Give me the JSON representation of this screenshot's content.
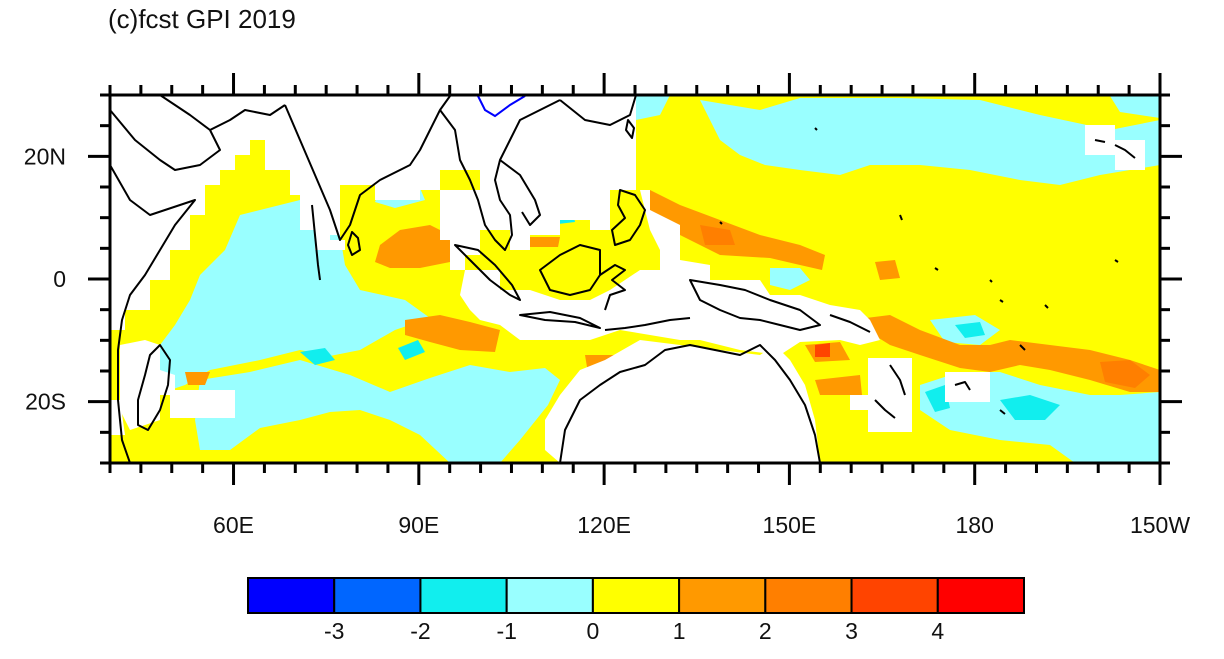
{
  "title": "(c)fcst GPI 2019",
  "map": {
    "lon_range": [
      40,
      210
    ],
    "lat_range": [
      -30,
      30
    ],
    "lat_ticks": [
      {
        "lat": 20,
        "label": "20N"
      },
      {
        "lat": 0,
        "label": "0"
      },
      {
        "lat": -20,
        "label": "20S"
      }
    ],
    "lon_ticks": [
      {
        "lon": 60,
        "label": "60E"
      },
      {
        "lon": 90,
        "label": "90E"
      },
      {
        "lon": 120,
        "label": "120E"
      },
      {
        "lon": 150,
        "label": "150E"
      },
      {
        "lon": 180,
        "label": "180"
      },
      {
        "lon": 210,
        "label": "150W"
      }
    ],
    "background_level": "0 to 1 (yellow)",
    "colors": {
      "frame": "#000000",
      "coastline": "#000000",
      "lake": "#0000ff",
      "missing": "#ffffff"
    }
  },
  "colorbar": {
    "bins": [
      {
        "color": "#0000ff"
      },
      {
        "color": "#0066ff"
      },
      {
        "color": "#11eeee"
      },
      {
        "color": "#99ffff"
      },
      {
        "color": "#ffff00"
      },
      {
        "color": "#ff9900"
      },
      {
        "color": "#ff7f00"
      },
      {
        "color": "#ff4400"
      },
      {
        "color": "#ff0000"
      }
    ],
    "labels": [
      "-3",
      "-2",
      "-1",
      "0",
      "1",
      "2",
      "3",
      "4"
    ]
  }
}
